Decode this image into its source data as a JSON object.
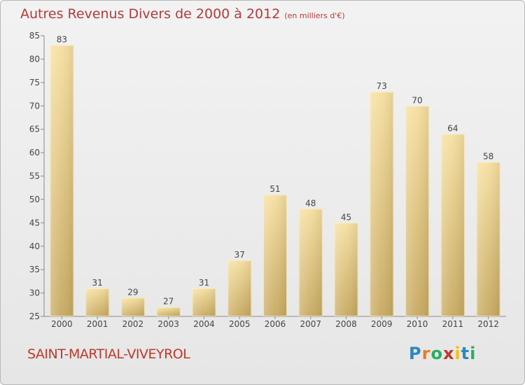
{
  "header": {
    "title": "Autres Revenus Divers de 2000 à 2012",
    "unit": "(en milliers d'€)"
  },
  "footer": {
    "commune": "SAINT-MARTIAL-VIVEYROL",
    "brand": "Proxiti"
  },
  "colors": {
    "bar_light": "#f6dfa0",
    "bar_dark": "#c8aa62",
    "title": "#b33a3a",
    "commune": "#c0392b"
  },
  "chart_data": {
    "type": "bar",
    "title": "Autres Revenus Divers de 2000 à 2012",
    "xlabel": "",
    "ylabel": "",
    "categories": [
      "2000",
      "2001",
      "2002",
      "2003",
      "2004",
      "2005",
      "2006",
      "2007",
      "2008",
      "2009",
      "2010",
      "2011",
      "2012"
    ],
    "values": [
      83,
      31,
      29,
      27,
      31,
      37,
      51,
      48,
      45,
      73,
      70,
      64,
      58
    ],
    "ylim": [
      25,
      85
    ],
    "yticks": [
      25,
      30,
      35,
      40,
      45,
      50,
      55,
      60,
      65,
      70,
      75,
      80,
      85
    ],
    "grid": false,
    "data_labels": true
  }
}
